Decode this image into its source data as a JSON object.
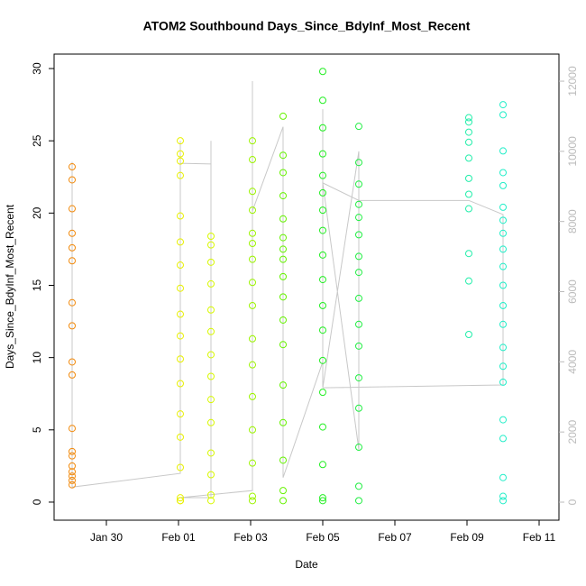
{
  "chart_data": {
    "type": "scatter",
    "title": "ATOM2 Southbound Days_Since_BdyInf_Most_Recent",
    "x_label": "Date",
    "y_label": "Days_Since_BdyInf_Most_Recent",
    "xlim": [
      -1.45,
      12.55
    ],
    "xticks": [
      {
        "value": 0,
        "label": "Jan 30"
      },
      {
        "value": 2,
        "label": "Feb 01"
      },
      {
        "value": 4,
        "label": "Feb 03"
      },
      {
        "value": 6,
        "label": "Feb 05"
      },
      {
        "value": 8,
        "label": "Feb 07"
      },
      {
        "value": 10,
        "label": "Feb 09"
      },
      {
        "value": 12,
        "label": "Feb 11"
      }
    ],
    "ylim": [
      -1.25,
      31
    ],
    "yticks": [
      0,
      5,
      10,
      15,
      20,
      25,
      30
    ],
    "y2lim": [
      -514,
      12772
    ],
    "y2ticks": [
      0,
      2000,
      4000,
      6000,
      8000,
      10000,
      12000
    ],
    "series": [
      {
        "type": "line",
        "axis": "y2",
        "color": "#c8c8c8",
        "x": [
          -0.95,
          -0.95,
          2.05,
          2.05,
          2.05,
          2.9,
          2.9,
          2.9,
          2.05,
          4.05,
          4.05,
          4.05,
          4.9,
          4.9,
          6.0,
          6.0,
          6.0,
          7.0,
          7.0,
          6.0,
          7.0,
          10.05,
          11.0,
          11.0,
          6.0
        ],
        "values": [
          9700,
          430,
          820,
          10300,
          9660,
          9640,
          10300,
          130,
          130,
          330,
          12000,
          8300,
          10700,
          700,
          4000,
          11200,
          3260,
          10000,
          1500,
          9100,
          8600,
          8600,
          8200,
          3340,
          3260
        ]
      },
      {
        "color": "#f28a0c",
        "x": [
          -0.95,
          -0.95,
          -0.95,
          -0.95,
          -0.95,
          -0.95,
          -0.95,
          -0.95,
          -0.95,
          -0.95,
          -0.95,
          -0.95,
          -0.95,
          -0.95,
          -0.95,
          -0.95,
          -0.95,
          -0.95
        ],
        "values": [
          1.2,
          1.5,
          1.8,
          2.1,
          2.5,
          3.2,
          3.5,
          5.1,
          8.8,
          9.7,
          12.2,
          13.8,
          16.7,
          17.6,
          18.6,
          20.3,
          22.3,
          23.2
        ]
      },
      {
        "color": "#e8f000",
        "x": [
          2.05,
          2.05,
          2.05,
          2.05,
          2.05,
          2.05,
          2.05,
          2.05,
          2.05,
          2.05,
          2.05,
          2.05,
          2.05,
          2.05,
          2.05,
          2.05,
          2.05,
          2.05
        ],
        "values": [
          0.1,
          0.1,
          0.3,
          2.4,
          4.5,
          6.1,
          8.2,
          9.9,
          11.5,
          13.0,
          14.8,
          16.4,
          18.0,
          19.8,
          22.6,
          23.6,
          24.1,
          25.0
        ]
      },
      {
        "color": "#d8f800",
        "x": [
          2.9,
          2.9,
          2.9,
          2.9,
          2.9,
          2.9,
          2.9,
          2.9,
          2.9,
          2.9,
          2.9,
          2.9,
          2.9,
          2.9
        ],
        "values": [
          0.1,
          0.5,
          1.9,
          3.4,
          5.5,
          7.1,
          8.7,
          10.2,
          11.8,
          13.3,
          15.1,
          16.6,
          17.8,
          18.4
        ]
      },
      {
        "color": "#9cf400",
        "x": [
          4.05,
          4.05,
          4.05,
          4.05,
          4.05,
          4.05,
          4.05,
          4.05,
          4.05,
          4.05,
          4.05,
          4.05,
          4.05,
          4.05,
          4.05,
          4.05
        ],
        "values": [
          0.1,
          0.4,
          2.7,
          5.0,
          7.3,
          9.5,
          11.3,
          13.6,
          15.2,
          16.8,
          17.9,
          18.6,
          20.2,
          21.5,
          23.7,
          25.0
        ]
      },
      {
        "color": "#66f200",
        "x": [
          4.9,
          4.9,
          4.9,
          4.9,
          4.9,
          4.9,
          4.9,
          4.9,
          4.9,
          4.9,
          4.9,
          4.9,
          4.9,
          4.9,
          4.9,
          4.9,
          4.9
        ],
        "values": [
          0.1,
          0.8,
          2.9,
          5.5,
          8.1,
          10.9,
          12.6,
          14.2,
          15.6,
          16.8,
          17.5,
          18.3,
          19.6,
          21.2,
          22.8,
          24.0,
          26.7
        ]
      },
      {
        "color": "#22ee22",
        "x": [
          6.0,
          6.0,
          6.0,
          6.0,
          6.0,
          6.0,
          6.0,
          6.0,
          6.0,
          6.0,
          6.0,
          6.0,
          6.0,
          6.0,
          6.0,
          6.0,
          6.0,
          6.0
        ],
        "values": [
          0.1,
          0.3,
          2.6,
          5.2,
          7.6,
          9.8,
          11.9,
          13.6,
          15.4,
          17.1,
          18.8,
          20.2,
          21.4,
          22.6,
          24.1,
          25.9,
          27.8,
          29.8
        ]
      },
      {
        "color": "#22ee44",
        "x": [
          7.0,
          7.0,
          7.0,
          7.0,
          7.0,
          7.0,
          7.0,
          7.0,
          7.0,
          7.0,
          7.0,
          7.0,
          7.0,
          7.0,
          7.0,
          7.0
        ],
        "values": [
          0.1,
          1.1,
          3.8,
          6.5,
          8.6,
          10.8,
          12.3,
          14.1,
          15.9,
          17.0,
          18.5,
          19.7,
          20.6,
          22.0,
          23.5,
          26.0
        ]
      },
      {
        "color": "#22eeaa",
        "x": [
          10.05,
          10.05,
          10.05,
          10.05,
          10.05,
          10.05,
          10.05,
          10.05,
          10.05,
          10.05,
          10.05
        ],
        "values": [
          11.6,
          15.3,
          17.2,
          20.3,
          21.3,
          22.4,
          23.8,
          24.9,
          25.6,
          26.3,
          26.6
        ]
      },
      {
        "color": "#22eec8",
        "x": [
          11.0,
          11.0,
          11.0,
          11.0,
          11.0,
          11.0,
          11.0,
          11.0,
          11.0,
          11.0,
          11.0,
          11.0,
          11.0,
          11.0,
          11.0,
          11.0,
          11.0,
          11.0,
          11.0,
          11.0,
          11.0
        ],
        "values": [
          0.1,
          0.4,
          1.7,
          4.4,
          5.7,
          8.3,
          9.4,
          10.7,
          12.3,
          13.6,
          15.0,
          16.3,
          17.5,
          18.6,
          19.5,
          20.4,
          21.9,
          22.8,
          24.3,
          26.8,
          27.5
        ]
      }
    ]
  }
}
